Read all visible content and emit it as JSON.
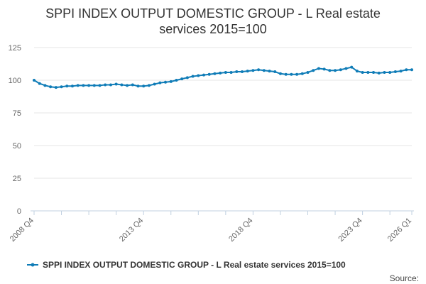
{
  "chart_data": {
    "type": "line",
    "title_lines": [
      "SPPI INDEX OUTPUT DOMESTIC GROUP - L Real estate",
      "services 2015=100"
    ],
    "xlabel": "",
    "ylabel": "",
    "ylim": [
      0,
      125
    ],
    "yticks": [
      0,
      25,
      50,
      75,
      100,
      125
    ],
    "x_tick_labels": [
      {
        "index": 0,
        "label": "2008 Q4"
      },
      {
        "index": 20,
        "label": "2013 Q4"
      },
      {
        "index": 40,
        "label": "2018 Q4"
      },
      {
        "index": 60,
        "label": "2023 Q4"
      },
      {
        "index": 69,
        "label": "2026 Q1"
      }
    ],
    "x_tick_indices": [
      0,
      5,
      10,
      15,
      20,
      25,
      30,
      35,
      40,
      45,
      50,
      55,
      60,
      65,
      69
    ],
    "grid": true,
    "legend_position": "bottom",
    "source_label": "Source:",
    "series": [
      {
        "name": "SPPI INDEX OUTPUT DOMESTIC GROUP - L Real estate services 2015=100",
        "color": "#0f7cb7",
        "values": [
          100.0,
          97.5,
          96.0,
          95.0,
          94.5,
          95.0,
          95.5,
          95.5,
          96.0,
          96.0,
          96.0,
          96.0,
          96.0,
          96.5,
          96.5,
          97.0,
          96.5,
          96.0,
          96.5,
          95.5,
          95.5,
          96.0,
          97.0,
          98.0,
          98.5,
          99.0,
          100.0,
          101.0,
          102.0,
          103.0,
          103.5,
          104.0,
          104.5,
          105.0,
          105.5,
          106.0,
          106.0,
          106.5,
          106.5,
          107.0,
          107.5,
          108.0,
          107.5,
          107.0,
          106.5,
          105.0,
          104.5,
          104.5,
          104.5,
          105.0,
          106.0,
          107.5,
          109.0,
          108.5,
          107.5,
          107.5,
          108.0,
          109.0,
          110.0,
          107.0,
          106.0,
          106.0,
          106.0,
          105.5,
          106.0,
          106.0,
          106.5,
          107.0,
          108.0,
          108.0
        ]
      }
    ]
  }
}
